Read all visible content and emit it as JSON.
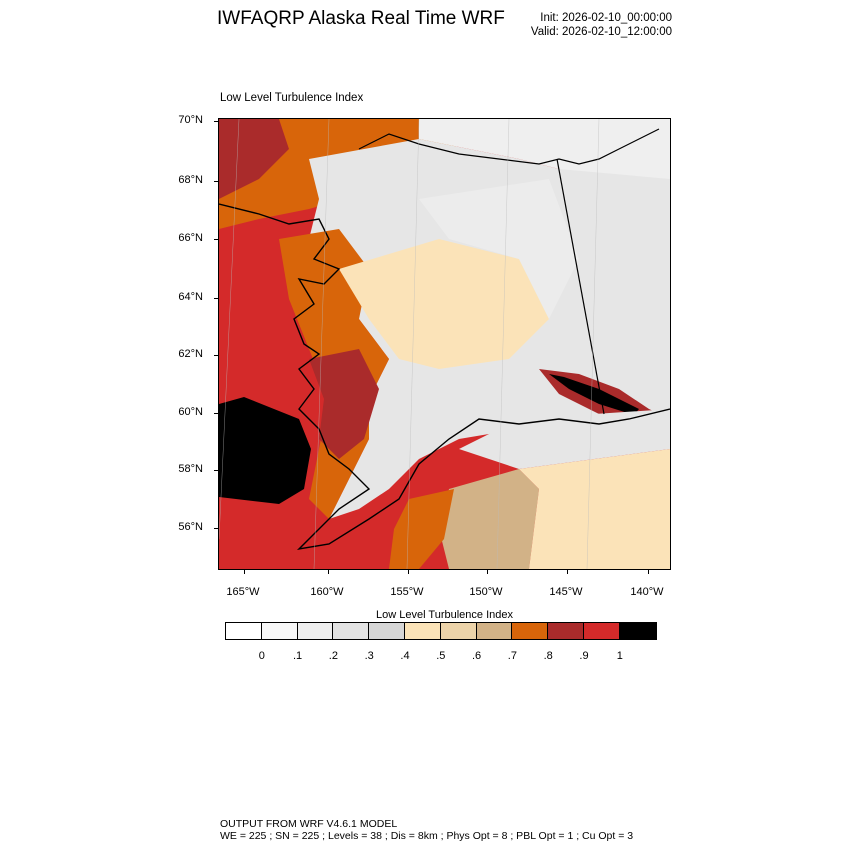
{
  "header": {
    "title": "IWFAQRP Alaska Real Time WRF",
    "init": "Init: 2026-02-10_00:00:00",
    "valid": "Valid: 2026-02-10_12:00:00"
  },
  "map": {
    "subtitle": "Low Level Turbulence Index",
    "lat_labels": [
      "70°N",
      "68°N",
      "66°N",
      "64°N",
      "62°N",
      "60°N",
      "58°N",
      "56°N"
    ],
    "lon_labels": [
      "165°W",
      "160°W",
      "155°W",
      "150°W",
      "145°W",
      "140°W"
    ],
    "colors": {
      "ocean_high": "#d42a2a",
      "ocean_black": "#000000",
      "dark_red": "#aa2b2b",
      "orange": "#d8650a",
      "tan": "#d2b287",
      "light_tan": "#ecd3a9",
      "cream": "#fbe3b8",
      "grey": "#e0e0e0",
      "light_grey": "#efefef",
      "white": "#fafafa"
    }
  },
  "colorbar": {
    "title": "Low Level Turbulence Index",
    "colors": [
      "#ffffff",
      "#f7f7f7",
      "#efefef",
      "#e3e3e3",
      "#d6d6d6",
      "#fbe3b8",
      "#ecd3a9",
      "#d2b287",
      "#d8650a",
      "#aa2b2b",
      "#d42a2a",
      "#000000"
    ],
    "labels": [
      "0",
      ".1",
      ".2",
      ".3",
      ".4",
      ".5",
      ".6",
      ".7",
      ".8",
      ".9",
      "1"
    ]
  },
  "footer": {
    "line1": "OUTPUT FROM WRF V4.6.1 MODEL",
    "line2": "WE = 225 ; SN = 225 ; Levels = 38 ; Dis = 8km ; Phys Opt = 8 ; PBL Opt = 1 ; Cu Opt = 3"
  }
}
